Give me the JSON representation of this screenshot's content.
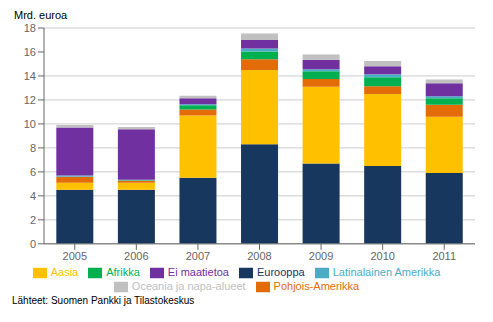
{
  "chart_data": {
    "type": "bar",
    "stacked": true,
    "y_label": "Mrd. euroa",
    "annotations": [
      "Lähteet: Suomen Pankki ja Tilastokeskus"
    ],
    "categories": [
      "2005",
      "2006",
      "2007",
      "2008",
      "2009",
      "2010",
      "2011"
    ],
    "series": [
      {
        "name": "Eurooppa",
        "color": "#17375E",
        "values": [
          4.5,
          4.5,
          5.5,
          8.3,
          6.7,
          6.5,
          5.9
        ]
      },
      {
        "name": "Aasia",
        "color": "#FFC000",
        "values": [
          0.6,
          0.6,
          5.2,
          6.2,
          6.4,
          6.0,
          4.7
        ]
      },
      {
        "name": "Pohjois-Amerikka",
        "color": "#E36C09",
        "values": [
          0.5,
          0.15,
          0.5,
          0.9,
          0.65,
          0.65,
          1.0
        ]
      },
      {
        "name": "Afrikka",
        "color": "#00B050",
        "values": [
          0.0,
          0.05,
          0.35,
          0.65,
          0.65,
          0.75,
          0.55
        ]
      },
      {
        "name": "Latinalainen Amerikka",
        "color": "#4BACC6",
        "values": [
          0.1,
          0.05,
          0.1,
          0.25,
          0.15,
          0.25,
          0.15
        ]
      },
      {
        "name": "Ei maatietoa",
        "color": "#7030A0",
        "values": [
          4.0,
          4.2,
          0.5,
          0.7,
          0.8,
          0.65,
          1.1
        ]
      },
      {
        "name": "Oceania ja napa-alueet",
        "color": "#C0C0C0",
        "values": [
          0.2,
          0.2,
          0.2,
          0.55,
          0.45,
          0.45,
          0.3
        ]
      }
    ],
    "ylim": [
      0,
      18
    ],
    "yticks": [
      0,
      2,
      4,
      6,
      8,
      10,
      12,
      14,
      16,
      18
    ],
    "grid": true,
    "legend": "bottom"
  }
}
